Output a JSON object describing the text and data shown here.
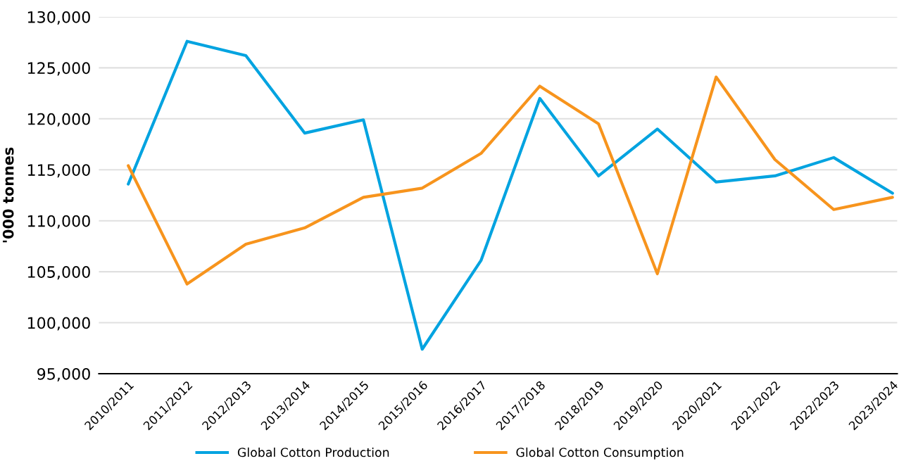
{
  "chart_data": {
    "type": "line",
    "ylabel": "'000 tonnes",
    "categories": [
      "2010/2011",
      "2011/2012",
      "2012/2013",
      "2013/2014",
      "2014/2015",
      "2015/2016",
      "2016/2017",
      "2017/2018",
      "2018/2019",
      "2019/2020",
      "2020/2021",
      "2021/2022",
      "2022/2023",
      "2023/2024"
    ],
    "series": [
      {
        "name": "Global Cotton Production",
        "color": "#00a3e0",
        "values": [
          113600,
          127600,
          126200,
          118600,
          119900,
          97400,
          106100,
          122000,
          114400,
          119000,
          113800,
          114400,
          116200,
          112700
        ]
      },
      {
        "name": "Global Cotton Consumption",
        "color": "#f7941d",
        "values": [
          115400,
          103800,
          107700,
          109300,
          112300,
          113200,
          116600,
          123200,
          119500,
          104800,
          124100,
          116000,
          111100,
          112300
        ]
      }
    ],
    "ylim": [
      95000,
      130000
    ],
    "yticks": [
      {
        "value": 95000,
        "label": "95,000"
      },
      {
        "value": 100000,
        "label": "100,000"
      },
      {
        "value": 105000,
        "label": "105,000"
      },
      {
        "value": 110000,
        "label": "110,000"
      },
      {
        "value": 115000,
        "label": "115,000"
      },
      {
        "value": 120000,
        "label": "120,000"
      },
      {
        "value": 125000,
        "label": "125,000"
      },
      {
        "value": 130000,
        "label": "130,000"
      }
    ],
    "grid": "y",
    "legend": "bottom",
    "line_style": "solid",
    "marker": "none"
  }
}
